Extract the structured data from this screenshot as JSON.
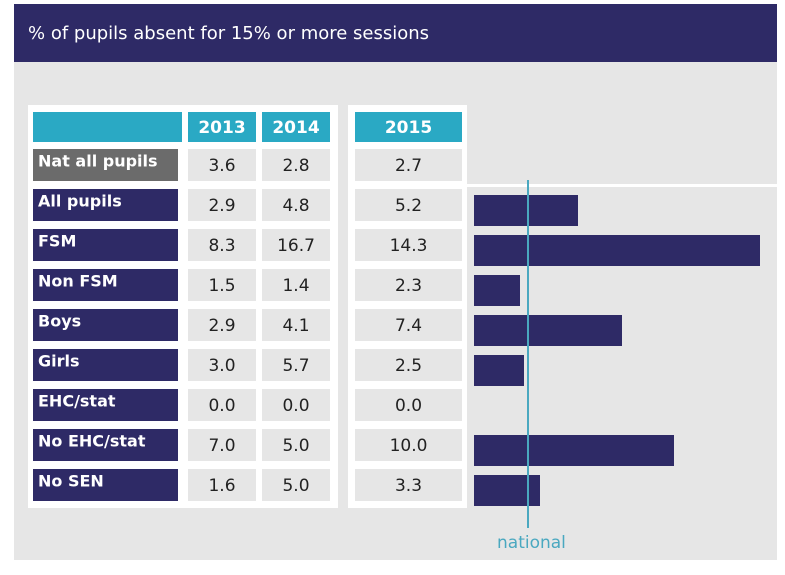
{
  "title": "% of pupils absent for 15% or more sessions",
  "table": {
    "columns": [
      "2013",
      "2014",
      "2015"
    ],
    "rows": [
      {
        "label": "Nat all pupils",
        "values": [
          "3.6",
          "2.8",
          "2.7"
        ]
      },
      {
        "label": "All pupils",
        "values": [
          "2.9",
          "4.8",
          "5.2"
        ]
      },
      {
        "label": "FSM",
        "values": [
          "8.3",
          "16.7",
          "14.3"
        ]
      },
      {
        "label": "Non FSM",
        "values": [
          "1.5",
          "1.4",
          "2.3"
        ]
      },
      {
        "label": "Boys",
        "values": [
          "2.9",
          "4.1",
          "7.4"
        ]
      },
      {
        "label": "Girls",
        "values": [
          "3.0",
          "5.7",
          "2.5"
        ]
      },
      {
        "label": "EHC/stat",
        "values": [
          "0.0",
          "0.0",
          "0.0"
        ]
      },
      {
        "label": "No EHC/stat",
        "values": [
          "7.0",
          "5.0",
          "10.0"
        ]
      },
      {
        "label": "No SEN",
        "values": [
          "1.6",
          "5.0",
          "3.3"
        ]
      }
    ]
  },
  "national_label": "national"
}
